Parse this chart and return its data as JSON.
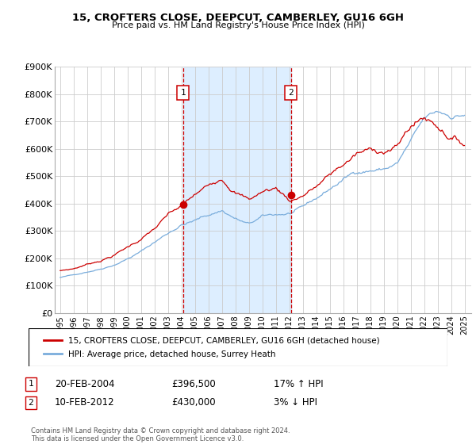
{
  "title": "15, CROFTERS CLOSE, DEEPCUT, CAMBERLEY, GU16 6GH",
  "subtitle": "Price paid vs. HM Land Registry's House Price Index (HPI)",
  "ylim": [
    0,
    900000
  ],
  "yticks": [
    0,
    100000,
    200000,
    300000,
    400000,
    500000,
    600000,
    700000,
    800000,
    900000
  ],
  "ytick_labels": [
    "£0",
    "£100K",
    "£200K",
    "£300K",
    "£400K",
    "£500K",
    "£600K",
    "£700K",
    "£800K",
    "£900K"
  ],
  "sale1_year": 2004.12,
  "sale1_price": 396500,
  "sale1_label": "1",
  "sale1_date": "20-FEB-2004",
  "sale1_amount": "£396,500",
  "sale1_hpi": "17% ↑ HPI",
  "sale2_year": 2012.12,
  "sale2_price": 430000,
  "sale2_label": "2",
  "sale2_date": "10-FEB-2012",
  "sale2_amount": "£430,000",
  "sale2_hpi": "3% ↓ HPI",
  "red_line_color": "#cc0000",
  "blue_line_color": "#7aaddc",
  "shade_color": "#ddeeff",
  "grid_color": "#cccccc",
  "vline_color": "#cc0000",
  "legend1": "15, CROFTERS CLOSE, DEEPCUT, CAMBERLEY, GU16 6GH (detached house)",
  "legend2": "HPI: Average price, detached house, Surrey Heath",
  "footer": "Contains HM Land Registry data © Crown copyright and database right 2024.\nThis data is licensed under the Open Government Licence v3.0."
}
